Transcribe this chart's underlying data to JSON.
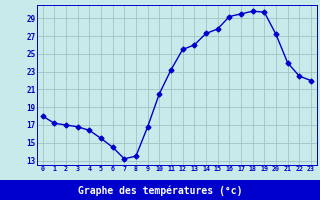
{
  "hours": [
    0,
    1,
    2,
    3,
    4,
    5,
    6,
    7,
    8,
    9,
    10,
    11,
    12,
    13,
    14,
    15,
    16,
    17,
    18,
    19,
    20,
    21,
    22,
    23
  ],
  "temps": [
    18.0,
    17.2,
    17.0,
    16.8,
    16.4,
    15.5,
    14.5,
    13.2,
    13.5,
    16.8,
    20.5,
    23.2,
    25.5,
    26.0,
    27.3,
    27.8,
    29.2,
    29.5,
    29.8,
    29.7,
    27.2,
    24.0,
    22.5,
    22.0
  ],
  "line_color": "#0000cc",
  "marker": "D",
  "marker_size": 2.5,
  "bg_color": "#c8eaea",
  "plot_bg": "#c8eaea",
  "grid_color": "#a0c4c4",
  "xlabel": "Graphe des températures (°c)",
  "xlabel_color": "white",
  "xlabel_bg": "#0000cc",
  "tick_label_color": "#0000cc",
  "ylim_min": 12.5,
  "ylim_max": 30.5,
  "yticks": [
    13,
    15,
    17,
    19,
    21,
    23,
    25,
    27,
    29
  ],
  "xticks": [
    0,
    1,
    2,
    3,
    4,
    5,
    6,
    7,
    8,
    9,
    10,
    11,
    12,
    13,
    14,
    15,
    16,
    17,
    18,
    19,
    20,
    21,
    22,
    23
  ]
}
